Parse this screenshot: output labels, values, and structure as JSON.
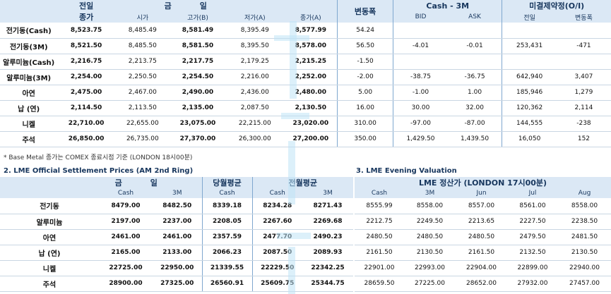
{
  "section1": {
    "headers": {
      "prev_day_top": "전일",
      "prev_day_bottom": "종가",
      "today_top": "금",
      "today_top2": "일",
      "change": "변동폭",
      "cash3m": "Cash - 3M",
      "open_interest": "미결제약정(O/I)",
      "open": "시가",
      "high": "고가(B)",
      "low": "저가(A)",
      "close": "종가(A)",
      "bid": "BID",
      "ask": "ASK",
      "oi_prev": "전일",
      "oi_change": "변동폭"
    },
    "rows": [
      {
        "name": "전기동(Cash)",
        "prev": "8,523.75",
        "open": "8,485.49",
        "high": "8,581.49",
        "low": "8,395.49",
        "close": "8,577.99",
        "change": "54.24",
        "bid": "",
        "ask": "",
        "oi_prev": "",
        "oi_change": ""
      },
      {
        "name": "전기동(3M)",
        "prev": "8,521.50",
        "open": "8,485.50",
        "high": "8,581.50",
        "low": "8,395.50",
        "close": "8,578.00",
        "change": "56.50",
        "bid": "-4.01",
        "ask": "-0.01",
        "oi_prev": "253,431",
        "oi_change": "-471"
      },
      {
        "name": "알루미늄(Cash)",
        "prev": "2,216.75",
        "open": "2,213.75",
        "high": "2,217.75",
        "low": "2,179.25",
        "close": "2,215.25",
        "change": "-1.50",
        "bid": "",
        "ask": "",
        "oi_prev": "",
        "oi_change": ""
      },
      {
        "name": "알루미늄(3M)",
        "prev": "2,254.00",
        "open": "2,250.50",
        "high": "2,254.50",
        "low": "2,216.00",
        "close": "2,252.00",
        "change": "-2.00",
        "bid": "-38.75",
        "ask": "-36.75",
        "oi_prev": "642,940",
        "oi_change": "3,407"
      },
      {
        "name": "아연",
        "prev": "2,475.00",
        "open": "2,467.00",
        "high": "2,490.00",
        "low": "2,436.00",
        "close": "2,480.00",
        "change": "5.00",
        "bid": "-1.00",
        "ask": "1.00",
        "oi_prev": "185,946",
        "oi_change": "1,279"
      },
      {
        "name": "납 (연)",
        "prev": "2,114.50",
        "open": "2,113.50",
        "high": "2,135.00",
        "low": "2,087.50",
        "close": "2,130.50",
        "change": "16.00",
        "bid": "30.00",
        "ask": "32.00",
        "oi_prev": "120,362",
        "oi_change": "2,114"
      },
      {
        "name": "니켈",
        "prev": "22,710.00",
        "open": "22,655.00",
        "high": "23,075.00",
        "low": "22,215.00",
        "close": "23,020.00",
        "change": "310.00",
        "bid": "-97.00",
        "ask": "-87.00",
        "oi_prev": "144,555",
        "oi_change": "-238"
      },
      {
        "name": "주석",
        "prev": "26,850.00",
        "open": "26,735.00",
        "high": "27,370.00",
        "low": "26,300.00",
        "close": "27,200.00",
        "change": "350.00",
        "bid": "1,429.50",
        "ask": "1,439.50",
        "oi_prev": "16,050",
        "oi_change": "152"
      }
    ]
  },
  "note": "* Base Metal 종가는 COMEX 종료시점 기준 (LONDON 18시00분)",
  "section2": {
    "title": "2. LME Official Settlement Prices (AM 2nd Ring)",
    "headers": {
      "today1": "금",
      "today2": "일",
      "monthly_avg": "당월평균",
      "prev_month_avg": "전월평균",
      "cash": "Cash",
      "m3": "3M"
    },
    "rows": [
      {
        "name": "전기동",
        "cash": "8479.00",
        "m3": "8482.50",
        "avg_cash": "8339.18",
        "pavg_cash": "8234.28",
        "pavg_3m": "8271.43"
      },
      {
        "name": "알루미늄",
        "cash": "2197.00",
        "m3": "2237.00",
        "avg_cash": "2208.05",
        "pavg_cash": "2267.60",
        "pavg_3m": "2269.68"
      },
      {
        "name": "아연",
        "cash": "2461.00",
        "m3": "2461.00",
        "avg_cash": "2357.59",
        "pavg_cash": "2477.70",
        "pavg_3m": "2490.23"
      },
      {
        "name": "납 (연)",
        "cash": "2165.00",
        "m3": "2133.00",
        "avg_cash": "2066.23",
        "pavg_cash": "2087.50",
        "pavg_3m": "2089.93"
      },
      {
        "name": "니켈",
        "cash": "22725.00",
        "m3": "22950.00",
        "avg_cash": "21339.55",
        "pavg_cash": "22229.50",
        "pavg_3m": "22342.25"
      },
      {
        "name": "주석",
        "cash": "28900.00",
        "m3": "27325.00",
        "avg_cash": "26560.91",
        "pavg_cash": "25609.75",
        "pavg_3m": "25344.75"
      }
    ]
  },
  "section3": {
    "title": "3. LME Evening Valuation",
    "headers": {
      "group": "LME 정산가 (LONDON 17시00분)",
      "cash": "Cash",
      "m3": "3M",
      "jun": "Jun",
      "jul": "Jul",
      "aug": "Aug"
    },
    "rows": [
      {
        "cash": "8555.99",
        "m3": "8558.00",
        "jun": "8557.00",
        "jul": "8561.00",
        "aug": "8558.00"
      },
      {
        "cash": "2212.75",
        "m3": "2249.50",
        "jun": "2213.65",
        "jul": "2227.50",
        "aug": "2238.50"
      },
      {
        "cash": "2480.50",
        "m3": "2480.50",
        "jun": "2480.50",
        "jul": "2479.50",
        "aug": "2481.50"
      },
      {
        "cash": "2161.50",
        "m3": "2130.50",
        "jun": "2161.50",
        "jul": "2132.50",
        "aug": "2130.50"
      },
      {
        "cash": "22901.00",
        "m3": "22993.00",
        "jun": "22904.00",
        "jul": "22899.00",
        "aug": "22940.00"
      },
      {
        "cash": "28659.50",
        "m3": "27225.00",
        "jun": "28652.00",
        "jul": "27932.00",
        "aug": "27457.00"
      }
    ]
  }
}
